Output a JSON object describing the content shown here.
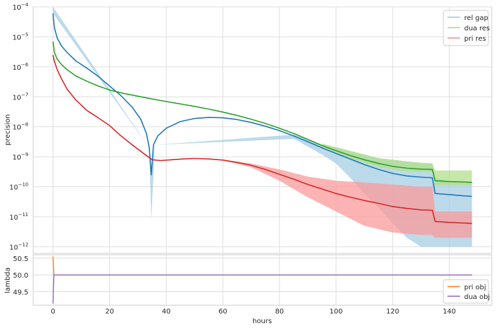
{
  "chart_data": [
    {
      "type": "line",
      "panel": "top",
      "ylabel": "precision",
      "xlabel": "",
      "yscale": "log",
      "ylim": [
        6e-13,
        0.0001
      ],
      "xlim": [
        -7,
        155
      ],
      "grid": true,
      "legend_position": "top-right",
      "ytick_exponents": [
        -4,
        -5,
        -6,
        -7,
        -8,
        -9,
        -10,
        -11,
        -12
      ],
      "series": [
        {
          "name": "rel gap",
          "color": "#1f77b4",
          "band_color": "#a6cee3",
          "points": [
            [
              0,
              6e-05
            ],
            [
              0.5,
              2e-05
            ],
            [
              1.5,
              9e-06
            ],
            [
              3,
              5e-06
            ],
            [
              5,
              3e-06
            ],
            [
              8,
              1.6e-06
            ],
            [
              12,
              9e-07
            ],
            [
              16,
              4.8e-07
            ],
            [
              20,
              2.3e-07
            ],
            [
              24,
              1.1e-07
            ],
            [
              28,
              4.5e-08
            ],
            [
              31,
              1.8e-08
            ],
            [
              33,
              6e-09
            ],
            [
              34,
              2e-09
            ],
            [
              34.7,
              2.5e-10
            ],
            [
              35.5,
              2.5e-09
            ],
            [
              37,
              5e-09
            ],
            [
              40,
              9e-09
            ],
            [
              45,
              1.5e-08
            ],
            [
              50,
              1.9e-08
            ],
            [
              55,
              2.05e-08
            ],
            [
              60,
              2e-08
            ],
            [
              65,
              1.75e-08
            ],
            [
              70,
              1.4e-08
            ],
            [
              75,
              1.05e-08
            ],
            [
              80,
              7.5e-09
            ],
            [
              85,
              5e-09
            ],
            [
              90,
              3.2e-09
            ],
            [
              95,
              2e-09
            ],
            [
              100,
              1.3e-09
            ],
            [
              105,
              8.5e-10
            ],
            [
              110,
              5.5e-10
            ],
            [
              115,
              3.8e-10
            ],
            [
              120,
              2.8e-10
            ],
            [
              125,
              2.3e-10
            ],
            [
              130,
              2.1e-10
            ],
            [
              134,
              2e-10
            ],
            [
              135,
              6e-11
            ],
            [
              140,
              5.5e-11
            ],
            [
              145,
              5e-11
            ],
            [
              148,
              4.8e-11
            ]
          ],
          "band": [
            [
              0,
              6e-05,
              0.0001
            ],
            [
              34,
              2e-09,
              2e-09
            ],
            [
              34.7,
              8e-12,
              2.5e-10
            ],
            [
              36,
              2.5e-09,
              2.5e-09
            ],
            [
              85,
              4e-09,
              5.5e-09
            ],
            [
              95,
              1.2e-09,
              2.5e-09
            ],
            [
              100,
              6e-10,
              2e-09
            ],
            [
              105,
              2e-10,
              1.5e-09
            ],
            [
              110,
              6e-11,
              1.2e-09
            ],
            [
              115,
              2e-11,
              9e-10
            ],
            [
              120,
              6e-12,
              8e-10
            ],
            [
              125,
              2e-12,
              7e-10
            ],
            [
              130,
              1e-12,
              6e-10
            ],
            [
              134,
              1e-12,
              6e-10
            ],
            [
              135,
              1e-12,
              2e-10
            ],
            [
              140,
              1e-12,
              1.5e-10
            ],
            [
              148,
              1e-12,
              1.5e-10
            ]
          ]
        },
        {
          "name": "dua res",
          "color": "#2ca02c",
          "band_color": "#b2df8a",
          "points": [
            [
              0,
              7e-06
            ],
            [
              0.5,
              3e-06
            ],
            [
              1.5,
              1.8e-06
            ],
            [
              3,
              1.2e-06
            ],
            [
              5,
              8e-07
            ],
            [
              8,
              5e-07
            ],
            [
              12,
              3.3e-07
            ],
            [
              16,
              2.3e-07
            ],
            [
              20,
              1.7e-07
            ],
            [
              25,
              1.3e-07
            ],
            [
              30,
              1.05e-07
            ],
            [
              35,
              8.5e-08
            ],
            [
              40,
              7e-08
            ],
            [
              45,
              5.8e-08
            ],
            [
              50,
              4.8e-08
            ],
            [
              55,
              3.9e-08
            ],
            [
              60,
              3.1e-08
            ],
            [
              65,
              2.4e-08
            ],
            [
              70,
              1.8e-08
            ],
            [
              75,
              1.3e-08
            ],
            [
              80,
              9e-09
            ],
            [
              85,
              6e-09
            ],
            [
              90,
              3.8e-09
            ],
            [
              95,
              2.4e-09
            ],
            [
              100,
              1.6e-09
            ],
            [
              105,
              1.1e-09
            ],
            [
              110,
              8e-10
            ],
            [
              115,
              6e-10
            ],
            [
              120,
              4.8e-10
            ],
            [
              125,
              4.2e-10
            ],
            [
              130,
              3.9e-10
            ],
            [
              134,
              3.8e-10
            ],
            [
              135,
              1.6e-10
            ],
            [
              140,
              1.5e-10
            ],
            [
              145,
              1.45e-10
            ],
            [
              148,
              1.4e-10
            ]
          ],
          "band": [
            [
              95,
              2.2e-09,
              2.8e-09
            ],
            [
              105,
              9e-10,
              1.6e-09
            ],
            [
              115,
              4.5e-10,
              9e-10
            ],
            [
              125,
              3.2e-10,
              7e-10
            ],
            [
              134,
              3e-10,
              6e-10
            ],
            [
              135,
              1.1e-10,
              3.5e-10
            ],
            [
              148,
              1.1e-10,
              3.5e-10
            ]
          ]
        },
        {
          "name": "pri res",
          "color": "#d62728",
          "band_color": "#fb9a99",
          "points": [
            [
              0,
              2.5e-06
            ],
            [
              0.5,
              1.5e-06
            ],
            [
              1.5,
              8e-07
            ],
            [
              3,
              4e-07
            ],
            [
              5,
              1.8e-07
            ],
            [
              8,
              8e-08
            ],
            [
              12,
              3.5e-08
            ],
            [
              16,
              2e-08
            ],
            [
              20,
              1.1e-08
            ],
            [
              24,
              5e-09
            ],
            [
              28,
              2.5e-09
            ],
            [
              32,
              1.3e-09
            ],
            [
              35,
              8e-10
            ],
            [
              38,
              7.5e-10
            ],
            [
              42,
              8e-10
            ],
            [
              46,
              8.5e-10
            ],
            [
              50,
              8.8e-10
            ],
            [
              55,
              8.5e-10
            ],
            [
              60,
              7.8e-10
            ],
            [
              65,
              6.5e-10
            ],
            [
              70,
              5.2e-10
            ],
            [
              75,
              3.8e-10
            ],
            [
              80,
              2.6e-10
            ],
            [
              85,
              1.8e-10
            ],
            [
              90,
              1.2e-10
            ],
            [
              95,
              8.5e-11
            ],
            [
              100,
              6e-11
            ],
            [
              105,
              4.5e-11
            ],
            [
              110,
              3.5e-11
            ],
            [
              115,
              2.8e-11
            ],
            [
              120,
              2.2e-11
            ],
            [
              125,
              1.9e-11
            ],
            [
              130,
              1.7e-11
            ],
            [
              134,
              1.65e-11
            ],
            [
              135,
              7e-12
            ],
            [
              140,
              6.5e-12
            ],
            [
              145,
              6.2e-12
            ],
            [
              148,
              6e-12
            ]
          ],
          "band": [
            [
              60,
              7.5e-10,
              8e-10
            ],
            [
              70,
              4.5e-10,
              6e-10
            ],
            [
              80,
              1.6e-10,
              3.8e-10
            ],
            [
              90,
              4.5e-11,
              2.2e-10
            ],
            [
              100,
              1.5e-11,
              1.6e-10
            ],
            [
              110,
              5e-12,
              1.4e-10
            ],
            [
              120,
              3e-12,
              1.2e-10
            ],
            [
              130,
              2.5e-12,
              1e-10
            ],
            [
              134,
              2.5e-12,
              1e-10
            ],
            [
              135,
              2e-12,
              1.5e-11
            ],
            [
              148,
              2e-12,
              1.5e-11
            ]
          ]
        }
      ]
    },
    {
      "type": "line",
      "panel": "bottom",
      "ylabel": "lambda",
      "xlabel": "hours",
      "ylim": [
        49.1,
        50.6
      ],
      "xlim": [
        -7,
        155
      ],
      "grid": true,
      "legend_position": "bottom-right",
      "yticks": [
        "50.5",
        "50.0",
        "49.5"
      ],
      "xticks": [
        "0",
        "20",
        "40",
        "60",
        "80",
        "100",
        "120",
        "140"
      ],
      "series": [
        {
          "name": "pri obj",
          "color": "#ff7f0e",
          "points": [
            [
              0,
              50.55
            ],
            [
              0.3,
              50.0
            ],
            [
              148,
              50.0
            ]
          ]
        },
        {
          "name": "dua obj",
          "color": "#9467bd",
          "points": [
            [
              0,
              49.15
            ],
            [
              0.3,
              50.0
            ],
            [
              148,
              50.0
            ]
          ]
        }
      ]
    }
  ]
}
